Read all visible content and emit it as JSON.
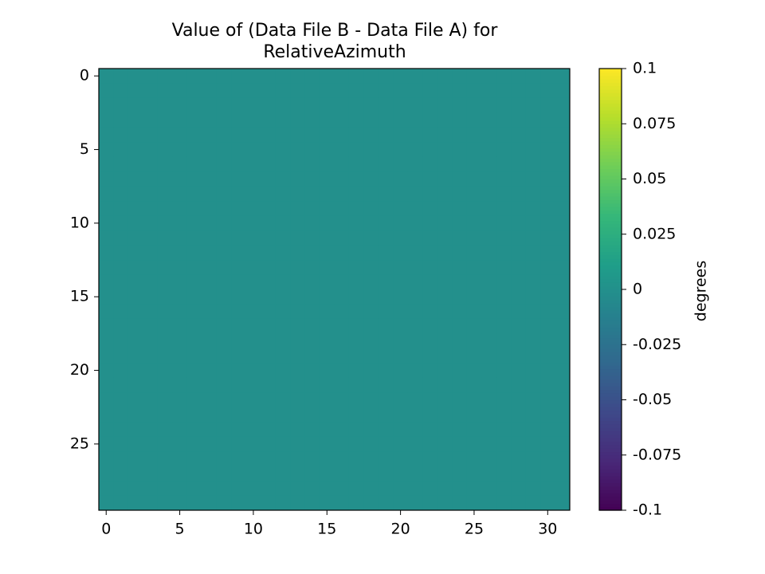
{
  "chart_data": {
    "type": "heatmap",
    "title": [
      "Value of (Data File B - Data File A) for",
      "RelativeAzimuth"
    ],
    "colormap": "viridis",
    "colorbar_label": "degrees",
    "clim": [
      -0.1,
      0.1
    ],
    "cticks": [
      -0.1,
      -0.075,
      -0.05,
      -0.025,
      0,
      0.025,
      0.05,
      0.075,
      0.1
    ],
    "xlim": [
      -0.5,
      31.5
    ],
    "xticks": [
      0,
      5,
      10,
      15,
      20,
      25,
      30
    ],
    "ylim": [
      29.5,
      -0.5
    ],
    "yticks": [
      0,
      5,
      10,
      15,
      20,
      25
    ],
    "z": [
      [
        0,
        0,
        0,
        0,
        0,
        0,
        0,
        0,
        0,
        0,
        0,
        0,
        0,
        0,
        0,
        0,
        0,
        0,
        0,
        0,
        0,
        0,
        0,
        0,
        0,
        0,
        0,
        0,
        0,
        0,
        0,
        0
      ],
      [
        0,
        0,
        0,
        0,
        0,
        0,
        0,
        0,
        0,
        0,
        0,
        0,
        0,
        0,
        0,
        0,
        0,
        0,
        0,
        0,
        0,
        0,
        0,
        0,
        0,
        0,
        0,
        0,
        0,
        0,
        0,
        0
      ],
      [
        0,
        0,
        0,
        0,
        0,
        0,
        0,
        0,
        0,
        0,
        0,
        0,
        0,
        0,
        0,
        0,
        0,
        0,
        0,
        0,
        0,
        0,
        0,
        0,
        0,
        0,
        0,
        0,
        0,
        0,
        0,
        0
      ],
      [
        0,
        0,
        0,
        0,
        0,
        0,
        0,
        0,
        0,
        0,
        0,
        0,
        0,
        0,
        0,
        0,
        0,
        0,
        0,
        0,
        0,
        0,
        0,
        0,
        0,
        0,
        0,
        0,
        0,
        0,
        0,
        0
      ],
      [
        0,
        0,
        0,
        0,
        0,
        0,
        0,
        0,
        0,
        0,
        0,
        0,
        0,
        0,
        0,
        0,
        0,
        0,
        0,
        0,
        0,
        0,
        0,
        0,
        0,
        0,
        0,
        0,
        0,
        0,
        0,
        0
      ],
      [
        0,
        0,
        0,
        0,
        0,
        0,
        0,
        0,
        0,
        0,
        0,
        0,
        0,
        0,
        0,
        0,
        0,
        0,
        0,
        0,
        0,
        0,
        0,
        0,
        0,
        0,
        0,
        0,
        0,
        0,
        0,
        0
      ],
      [
        0,
        0,
        0,
        0,
        0,
        0,
        0,
        0,
        0,
        0,
        0,
        0,
        0,
        0,
        0,
        0,
        0,
        0,
        0,
        0,
        0,
        0,
        0,
        0,
        0,
        0,
        0,
        0,
        0,
        0,
        0,
        0
      ],
      [
        0,
        0,
        0,
        0,
        0,
        0,
        0,
        0,
        0,
        0,
        0,
        0,
        0,
        0,
        0,
        0,
        0,
        0,
        0,
        0,
        0,
        0,
        0,
        0,
        0,
        0,
        0,
        0,
        0,
        0,
        0,
        0
      ],
      [
        0,
        0,
        0,
        0,
        0,
        0,
        0,
        0,
        0,
        0,
        0,
        0,
        0,
        0,
        0,
        0,
        0,
        0,
        0,
        0,
        0,
        0,
        0,
        0,
        0,
        0,
        0,
        0,
        0,
        0,
        0,
        0
      ],
      [
        0,
        0,
        0,
        0,
        0,
        0,
        0,
        0,
        0,
        0,
        0,
        0,
        0,
        0,
        0,
        0,
        0,
        0,
        0,
        0,
        0,
        0,
        0,
        0,
        0,
        0,
        0,
        0,
        0,
        0,
        0,
        0
      ],
      [
        0,
        0,
        0,
        0,
        0,
        0,
        0,
        0,
        0,
        0,
        0,
        0,
        0,
        0,
        0,
        0,
        0,
        0,
        0,
        0,
        0,
        0,
        0,
        0,
        0,
        0,
        0,
        0,
        0,
        0,
        0,
        0
      ],
      [
        0,
        0,
        0,
        0,
        0,
        0,
        0,
        0,
        0,
        0,
        0,
        0,
        0,
        0,
        0,
        0,
        0,
        0,
        0,
        0,
        0,
        0,
        0,
        0,
        0,
        0,
        0,
        0,
        0,
        0,
        0,
        0
      ],
      [
        0,
        0,
        0,
        0,
        0,
        0,
        0,
        0,
        0,
        0,
        0,
        0,
        0,
        0,
        0,
        0,
        0,
        0,
        0,
        0,
        0,
        0,
        0,
        0,
        0,
        0,
        0,
        0,
        0,
        0,
        0,
        0
      ],
      [
        0,
        0,
        0,
        0,
        0,
        0,
        0,
        0,
        0,
        0,
        0,
        0,
        0,
        0,
        0,
        0,
        0,
        0,
        0,
        0,
        0,
        0,
        0,
        0,
        0,
        0,
        0,
        0,
        0,
        0,
        0,
        0
      ],
      [
        0,
        0,
        0,
        0,
        0,
        0,
        0,
        0,
        0,
        0,
        0,
        0,
        0,
        0,
        0,
        0,
        0,
        0,
        0,
        0,
        0,
        0,
        0,
        0,
        0,
        0,
        0,
        0,
        0,
        0,
        0,
        0
      ],
      [
        0,
        0,
        0,
        0,
        0,
        0,
        0,
        0,
        0,
        0,
        0,
        0,
        0,
        0,
        0,
        0,
        0,
        0,
        0,
        0,
        0,
        0,
        0,
        0,
        0,
        0,
        0,
        0,
        0,
        0,
        0,
        0
      ],
      [
        0,
        0,
        0,
        0,
        0,
        0,
        0,
        0,
        0,
        0,
        0,
        0,
        0,
        0,
        0,
        0,
        0,
        0,
        0,
        0,
        0,
        0,
        0,
        0,
        0,
        0,
        0,
        0,
        0,
        0,
        0,
        0
      ],
      [
        0,
        0,
        0,
        0,
        0,
        0,
        0,
        0,
        0,
        0,
        0,
        0,
        0,
        0,
        0,
        0,
        0,
        0,
        0,
        0,
        0,
        0,
        0,
        0,
        0,
        0,
        0,
        0,
        0,
        0,
        0,
        0
      ],
      [
        0,
        0,
        0,
        0,
        0,
        0,
        0,
        0,
        0,
        0,
        0,
        0,
        0,
        0,
        0,
        0,
        0,
        0,
        0,
        0,
        0,
        0,
        0,
        0,
        0,
        0,
        0,
        0,
        0,
        0,
        0,
        0
      ],
      [
        0,
        0,
        0,
        0,
        0,
        0,
        0,
        0,
        0,
        0,
        0,
        0,
        0,
        0,
        0,
        0,
        0,
        0,
        0,
        0,
        0,
        0,
        0,
        0,
        0,
        0,
        0,
        0,
        0,
        0,
        0,
        0
      ],
      [
        0,
        0,
        0,
        0,
        0,
        0,
        0,
        0,
        0,
        0,
        0,
        0,
        0,
        0,
        0,
        0,
        0,
        0,
        0,
        0,
        0,
        0,
        0,
        0,
        0,
        0,
        0,
        0,
        0,
        0,
        0,
        0
      ],
      [
        0,
        0,
        0,
        0,
        0,
        0,
        0,
        0,
        0,
        0,
        0,
        0,
        0,
        0,
        0,
        0,
        0,
        0,
        0,
        0,
        0,
        0,
        0,
        0,
        0,
        0,
        0,
        0,
        0,
        0,
        0,
        0
      ],
      [
        0,
        0,
        0,
        0,
        0,
        0,
        0,
        0,
        0,
        0,
        0,
        0,
        0,
        0,
        0,
        0,
        0,
        0,
        0,
        0,
        0,
        0,
        0,
        0,
        0,
        0,
        0,
        0,
        0,
        0,
        0,
        0
      ],
      [
        0,
        0,
        0,
        0,
        0,
        0,
        0,
        0,
        0,
        0,
        0,
        0,
        0,
        0,
        0,
        0,
        0,
        0,
        0,
        0,
        0,
        0,
        0,
        0,
        0,
        0,
        0,
        0,
        0,
        0,
        0,
        0
      ],
      [
        0,
        0,
        0,
        0,
        0,
        0,
        0,
        0,
        0,
        0,
        0,
        0,
        0,
        0,
        0,
        0,
        0,
        0,
        0,
        0,
        0,
        0,
        0,
        0,
        0,
        0,
        0,
        0,
        0,
        0,
        0,
        0
      ],
      [
        0,
        0,
        0,
        0,
        0,
        0,
        0,
        0,
        0,
        0,
        0,
        0,
        0,
        0,
        0,
        0,
        0,
        0,
        0,
        0,
        0,
        0,
        0,
        0,
        0,
        0,
        0,
        0,
        0,
        0,
        0,
        0
      ],
      [
        0,
        0,
        0,
        0,
        0,
        0,
        0,
        0,
        0,
        0,
        0,
        0,
        0,
        0,
        0,
        0,
        0,
        0,
        0,
        0,
        0,
        0,
        0,
        0,
        0,
        0,
        0,
        0,
        0,
        0,
        0,
        0
      ],
      [
        0,
        0,
        0,
        0,
        0,
        0,
        0,
        0,
        0,
        0,
        0,
        0,
        0,
        0,
        0,
        0,
        0,
        0,
        0,
        0,
        0,
        0,
        0,
        0,
        0,
        0,
        0,
        0,
        0,
        0,
        0,
        0
      ],
      [
        0,
        0,
        0,
        0,
        0,
        0,
        0,
        0,
        0,
        0,
        0,
        0,
        0,
        0,
        0,
        0,
        0,
        0,
        0,
        0,
        0,
        0,
        0,
        0,
        0,
        0,
        0,
        0,
        0,
        0,
        0,
        0
      ],
      [
        0,
        0,
        0,
        0,
        0,
        0,
        0,
        0,
        0,
        0,
        0,
        0,
        0,
        0,
        0,
        0,
        0,
        0,
        0,
        0,
        0,
        0,
        0,
        0,
        0,
        0,
        0,
        0,
        0,
        0,
        0,
        0
      ]
    ]
  }
}
